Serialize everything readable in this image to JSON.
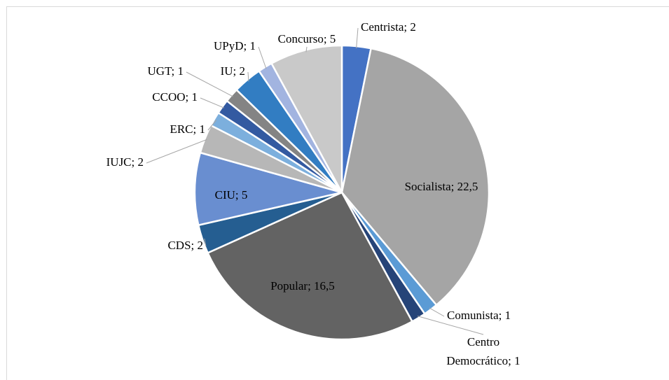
{
  "chart_data": {
    "type": "pie",
    "categories": [
      "Centrista",
      "Socialista",
      "Comunista",
      "Centro Democrático",
      "Popular",
      "CDS",
      "CIU",
      "IUJC",
      "ERC",
      "CCOO",
      "UGT",
      "IU",
      "UPyD",
      "Concurso"
    ],
    "values": [
      2,
      22.5,
      1,
      1,
      16.5,
      2,
      5,
      2,
      1,
      1,
      1,
      2,
      1,
      5
    ],
    "value_labels": [
      "Centrista; 2",
      "Socialista; 22,5",
      "Comunista; 1",
      "Centro\nDemocrático; 1",
      "Popular; 16,5",
      "CDS; 2",
      "CIU; 5",
      "IUJC; 2",
      "ERC; 1",
      "CCOO; 1",
      "UGT; 1",
      "IU; 2",
      "UPyD; 1",
      "Concurso; 5"
    ],
    "colors": [
      "#4472c4",
      "#a5a5a5",
      "#5b9bd5",
      "#264478",
      "#636363",
      "#255e91",
      "#698ed0",
      "#b7b7b7",
      "#7cafdd",
      "#335aa1",
      "#848484",
      "#327dc2",
      "#a2b4e0",
      "#c9c9c9"
    ]
  }
}
